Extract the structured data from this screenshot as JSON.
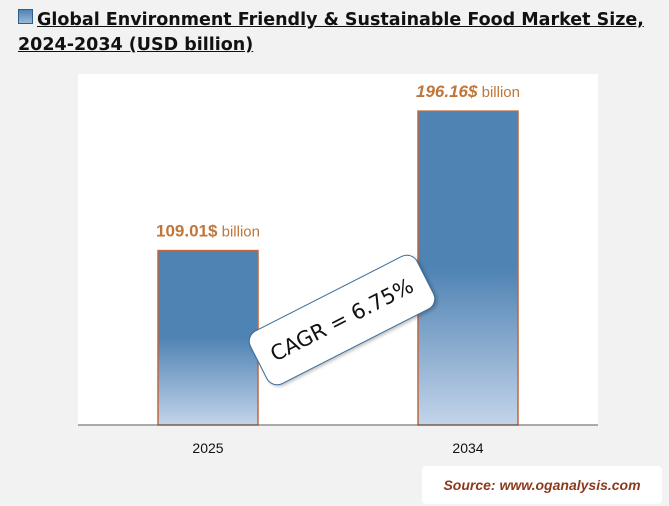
{
  "title": "Global Environment Friendly & Sustainable Food Market Size, 2024-2034 (USD billion)",
  "chart_data": {
    "type": "bar",
    "categories": [
      "2025",
      "2034"
    ],
    "values": [
      109.01,
      196.16
    ],
    "data_labels": [
      {
        "value": "109.01$",
        "unit": " billion"
      },
      {
        "value": "196.16$",
        "unit": " billion"
      }
    ],
    "ylim": [
      0,
      220
    ],
    "grid": false,
    "legend": "top-left"
  },
  "annotation": "CAGR = 6.75%",
  "source": "Source: www.oganalysis.com",
  "colors": {
    "bar_top": "#4f83b3",
    "bar_bottom": "#c3d4ea",
    "bar_border": "#c0663a",
    "label": "#c0763a",
    "axis": "#555555"
  }
}
